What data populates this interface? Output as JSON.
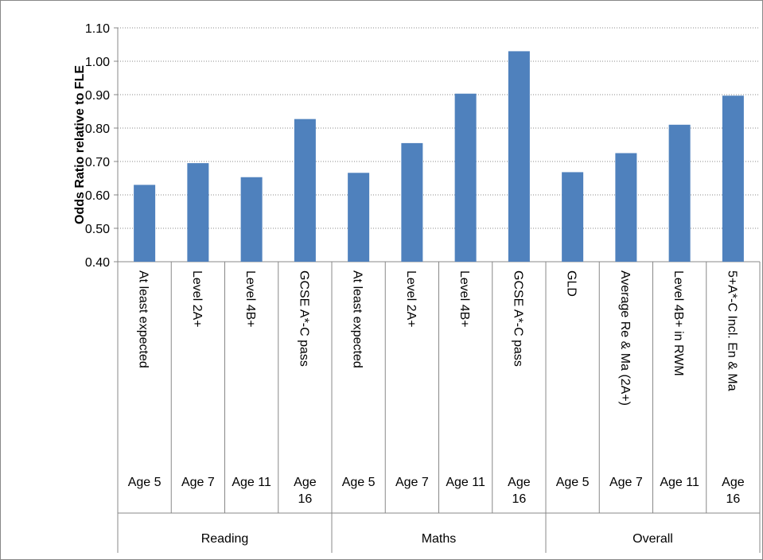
{
  "chart_data": {
    "type": "bar",
    "y_axis_label": "Odds Ratio relative to FLE",
    "categories": [
      "At least expected",
      "Level 2A+",
      "Level 4B+",
      "GCSE A*-C pass",
      "At least expected",
      "Level 2A+",
      "Level 4B+",
      "GCSE A*-C pass",
      "GLD",
      "Average Re & Ma (2A+)",
      "Level 4B+ in RWM",
      "5+A*-C Incl. En & Ma"
    ],
    "ages": [
      "Age 5",
      "Age 7",
      "Age 11",
      "Age 16",
      "Age 5",
      "Age 7",
      "Age 11",
      "Age 16",
      "Age 5",
      "Age 7",
      "Age 11",
      "Age 16"
    ],
    "groups": [
      "Reading",
      "Maths",
      "Overall"
    ],
    "values": [
      0.63,
      0.695,
      0.653,
      0.827,
      0.666,
      0.755,
      0.903,
      1.03,
      0.668,
      0.725,
      0.81,
      0.897
    ],
    "color": "#4f81bd",
    "ylim": [
      0.4,
      1.1
    ],
    "yticks": [
      {
        "value": 0.4,
        "label": "0.40"
      },
      {
        "value": 0.5,
        "label": "0.50"
      },
      {
        "value": 0.6,
        "label": "0.60"
      },
      {
        "value": 0.7,
        "label": "0.70"
      },
      {
        "value": 0.8,
        "label": "0.80"
      },
      {
        "value": 0.9,
        "label": "0.90"
      },
      {
        "value": 1.0,
        "label": "1.00"
      },
      {
        "value": 1.1,
        "label": "1.10"
      }
    ],
    "grid": true
  }
}
